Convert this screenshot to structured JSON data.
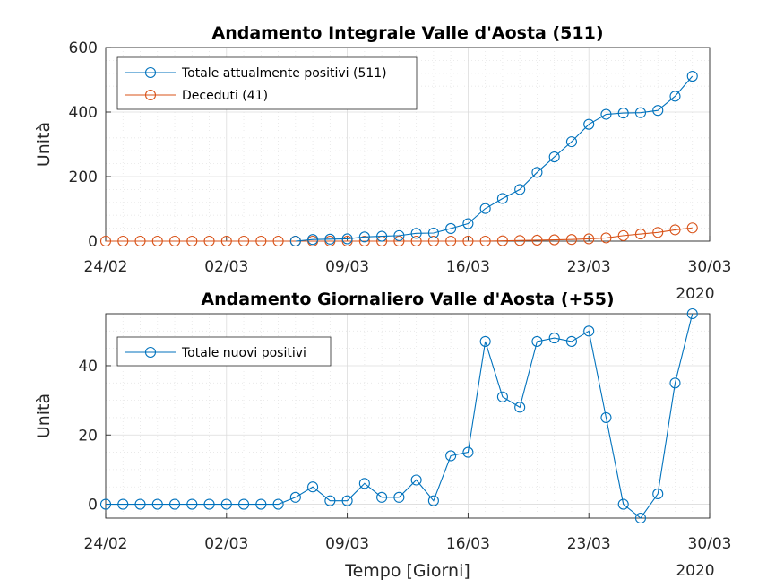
{
  "chart_data": [
    {
      "type": "line",
      "title": "Andamento Integrale Valle d'Aosta (511)",
      "xlabel": "",
      "ylabel": "Unità",
      "year_label": "2020",
      "x_ticks": [
        "24/02",
        "02/03",
        "09/03",
        "16/03",
        "23/03",
        "30/03"
      ],
      "y_ticks": [
        "0",
        "200",
        "400",
        "600"
      ],
      "ylim": [
        0,
        600
      ],
      "legend_position": "top-left",
      "grid": true,
      "series": [
        {
          "name": "Totale attualmente positivi (511)",
          "color": "#0072bd",
          "points": [
            {
              "x": "06/03",
              "y": 0
            },
            {
              "x": "07/03",
              "y": 5
            },
            {
              "x": "08/03",
              "y": 6
            },
            {
              "x": "09/03",
              "y": 7
            },
            {
              "x": "10/03",
              "y": 13
            },
            {
              "x": "11/03",
              "y": 15
            },
            {
              "x": "12/03",
              "y": 17
            },
            {
              "x": "13/03",
              "y": 24
            },
            {
              "x": "14/03",
              "y": 25
            },
            {
              "x": "15/03",
              "y": 39
            },
            {
              "x": "16/03",
              "y": 54
            },
            {
              "x": "17/03",
              "y": 101
            },
            {
              "x": "18/03",
              "y": 132
            },
            {
              "x": "19/03",
              "y": 160
            },
            {
              "x": "20/03",
              "y": 213
            },
            {
              "x": "21/03",
              "y": 261
            },
            {
              "x": "22/03",
              "y": 308
            },
            {
              "x": "23/03",
              "y": 362
            },
            {
              "x": "24/03",
              "y": 393
            },
            {
              "x": "25/03",
              "y": 397
            },
            {
              "x": "26/03",
              "y": 398
            },
            {
              "x": "27/03",
              "y": 405
            },
            {
              "x": "28/03",
              "y": 449
            },
            {
              "x": "29/03",
              "y": 511
            }
          ]
        },
        {
          "name": "Deceduti (41)",
          "color": "#d95319",
          "points": [
            {
              "x": "24/02",
              "y": 0
            },
            {
              "x": "25/02",
              "y": 0
            },
            {
              "x": "26/02",
              "y": 0
            },
            {
              "x": "27/02",
              "y": 0
            },
            {
              "x": "28/02",
              "y": 0
            },
            {
              "x": "29/02",
              "y": 0
            },
            {
              "x": "01/03",
              "y": 0
            },
            {
              "x": "02/03",
              "y": 0
            },
            {
              "x": "03/03",
              "y": 0
            },
            {
              "x": "04/03",
              "y": 0
            },
            {
              "x": "05/03",
              "y": 0
            },
            {
              "x": "06/03",
              "y": 0
            },
            {
              "x": "07/03",
              "y": 0
            },
            {
              "x": "08/03",
              "y": 0
            },
            {
              "x": "09/03",
              "y": 0
            },
            {
              "x": "10/03",
              "y": 0
            },
            {
              "x": "11/03",
              "y": 0
            },
            {
              "x": "12/03",
              "y": 0
            },
            {
              "x": "13/03",
              "y": 0
            },
            {
              "x": "14/03",
              "y": 0
            },
            {
              "x": "15/03",
              "y": 0
            },
            {
              "x": "16/03",
              "y": 0
            },
            {
              "x": "17/03",
              "y": 0
            },
            {
              "x": "18/03",
              "y": 1
            },
            {
              "x": "19/03",
              "y": 2
            },
            {
              "x": "20/03",
              "y": 3
            },
            {
              "x": "21/03",
              "y": 4
            },
            {
              "x": "22/03",
              "y": 5
            },
            {
              "x": "23/03",
              "y": 7
            },
            {
              "x": "24/03",
              "y": 10
            },
            {
              "x": "25/03",
              "y": 17
            },
            {
              "x": "26/03",
              "y": 22
            },
            {
              "x": "27/03",
              "y": 27
            },
            {
              "x": "28/03",
              "y": 35
            },
            {
              "x": "29/03",
              "y": 41
            }
          ]
        }
      ]
    },
    {
      "type": "line",
      "title": "Andamento Giornaliero Valle d'Aosta (+55)",
      "xlabel": "Tempo [Giorni]",
      "ylabel": "Unità",
      "year_label": "2020",
      "x_ticks": [
        "24/02",
        "02/03",
        "09/03",
        "16/03",
        "23/03",
        "30/03"
      ],
      "y_ticks": [
        "0",
        "20",
        "40"
      ],
      "ylim": [
        -4,
        55
      ],
      "legend_position": "top-left",
      "grid": true,
      "series": [
        {
          "name": "Totale nuovi positivi",
          "color": "#0072bd",
          "points": [
            {
              "x": "24/02",
              "y": 0
            },
            {
              "x": "25/02",
              "y": 0
            },
            {
              "x": "26/02",
              "y": 0
            },
            {
              "x": "27/02",
              "y": 0
            },
            {
              "x": "28/02",
              "y": 0
            },
            {
              "x": "29/02",
              "y": 0
            },
            {
              "x": "01/03",
              "y": 0
            },
            {
              "x": "02/03",
              "y": 0
            },
            {
              "x": "03/03",
              "y": 0
            },
            {
              "x": "04/03",
              "y": 0
            },
            {
              "x": "05/03",
              "y": 0
            },
            {
              "x": "06/03",
              "y": 2
            },
            {
              "x": "07/03",
              "y": 5
            },
            {
              "x": "08/03",
              "y": 1
            },
            {
              "x": "09/03",
              "y": 1
            },
            {
              "x": "10/03",
              "y": 6
            },
            {
              "x": "11/03",
              "y": 2
            },
            {
              "x": "12/03",
              "y": 2
            },
            {
              "x": "13/03",
              "y": 7
            },
            {
              "x": "14/03",
              "y": 1
            },
            {
              "x": "15/03",
              "y": 14
            },
            {
              "x": "16/03",
              "y": 15
            },
            {
              "x": "17/03",
              "y": 47
            },
            {
              "x": "18/03",
              "y": 31
            },
            {
              "x": "19/03",
              "y": 28
            },
            {
              "x": "20/03",
              "y": 47
            },
            {
              "x": "21/03",
              "y": 48
            },
            {
              "x": "22/03",
              "y": 47
            },
            {
              "x": "23/03",
              "y": 50
            },
            {
              "x": "24/03",
              "y": 25
            },
            {
              "x": "25/03",
              "y": 0
            },
            {
              "x": "26/03",
              "y": -4
            },
            {
              "x": "27/03",
              "y": 3
            },
            {
              "x": "28/03",
              "y": 35
            },
            {
              "x": "29/03",
              "y": 55
            }
          ]
        }
      ]
    }
  ]
}
